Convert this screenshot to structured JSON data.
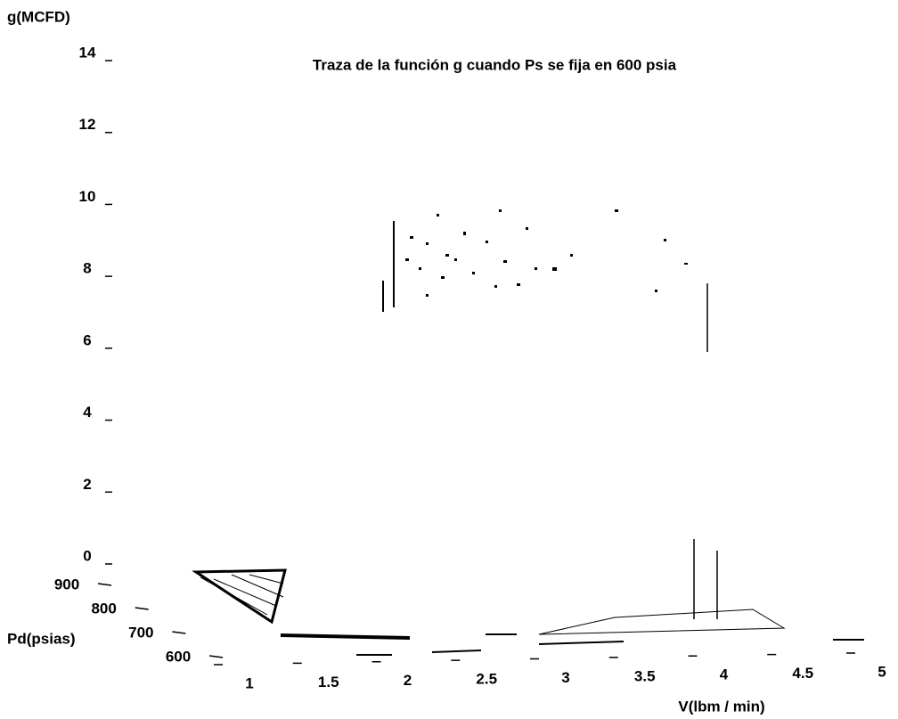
{
  "chart_data": {
    "type": "surface3d",
    "title": "Traza de la función g cuando Ps se fija en 600 psia",
    "zlabel": "g(MCFD)",
    "zlim": [
      0,
      14
    ],
    "zticks": [
      0,
      2,
      4,
      6,
      8,
      10,
      12,
      14
    ],
    "xlabel": "V(lbm / min)",
    "xlim": [
      1,
      5
    ],
    "xticks": [
      1,
      1.5,
      2,
      2.5,
      3,
      3.5,
      4,
      4.5,
      5
    ],
    "ylabel": "Pd(psias)",
    "ylim": [
      600,
      900
    ],
    "yticks": [
      600,
      700,
      800,
      900
    ]
  }
}
